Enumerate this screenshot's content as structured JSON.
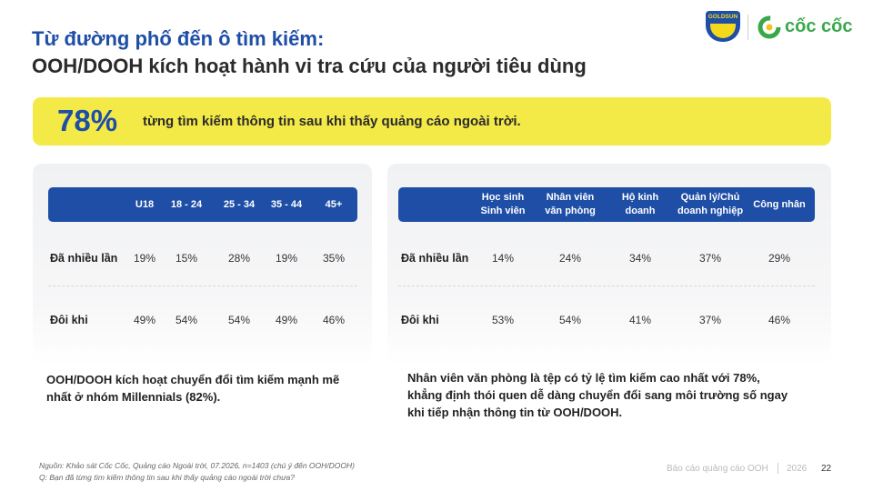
{
  "header": {
    "title_line1": "Từ đường phố đến ô tìm kiếm:",
    "title_line2": "OOH/DOOH kích hoạt hành vi tra cứu của người tiêu dùng"
  },
  "logos": {
    "goldsun": "GOLDSUN",
    "coccoc": "cốc cốc"
  },
  "highlight": {
    "stat": "78%",
    "text": "từng tìm kiếm thông tin sau khi thấy quảng cáo ngoài trời."
  },
  "tables": [
    {
      "headers": [
        [
          "U18"
        ],
        [
          "18 - 24"
        ],
        [
          "25 - 34"
        ],
        [
          "35 - 44"
        ],
        [
          "45+"
        ]
      ],
      "rows": [
        {
          "label": "Đã nhiều lần",
          "cells": [
            "19%",
            "15%",
            "28%",
            "19%",
            "35%"
          ]
        },
        {
          "label": "Đôi khi",
          "cells": [
            "49%",
            "54%",
            "54%",
            "49%",
            "46%"
          ]
        }
      ]
    },
    {
      "headers": [
        [
          "Học sinh",
          "Sinh viên"
        ],
        [
          "Nhân viên",
          "văn phòng"
        ],
        [
          "Hộ kinh",
          "doanh"
        ],
        [
          "Quản lý/Chủ",
          "doanh nghiệp"
        ],
        [
          "Công nhân"
        ]
      ],
      "rows": [
        {
          "label": "Đã nhiều lần",
          "cells": [
            "14%",
            "24%",
            "34%",
            "37%",
            "29%"
          ]
        },
        {
          "label": "Đôi khi",
          "cells": [
            "53%",
            "54%",
            "41%",
            "37%",
            "46%"
          ]
        }
      ]
    }
  ],
  "notes": [
    [
      "OOH/DOOH kích hoạt chuyển đổi tìm kiếm mạnh mẽ",
      "nhất ở nhóm Millennials (82%)."
    ],
    [
      "Nhân viên văn phòng là tệp có tỷ lệ tìm kiếm cao nhất với 78%,",
      "khẳng định thói quen dễ dàng chuyển đổi sang môi trường số ngay",
      "khi tiếp nhận thông tin từ OOH/DOOH."
    ]
  ],
  "footer": {
    "source": "Nguồn: Khảo sát Cốc Cốc, Quảng cáo Ngoài trời, 07.2026, n=1403 (chú ý đến OOH/DOOH)",
    "question": "Q: Bạn đã từng tìm kiếm thông tin sau khi thấy quảng cáo ngoài trời chưa?",
    "report": "Báo cáo quảng cáo OOH",
    "year": "2026",
    "page": "22"
  }
}
